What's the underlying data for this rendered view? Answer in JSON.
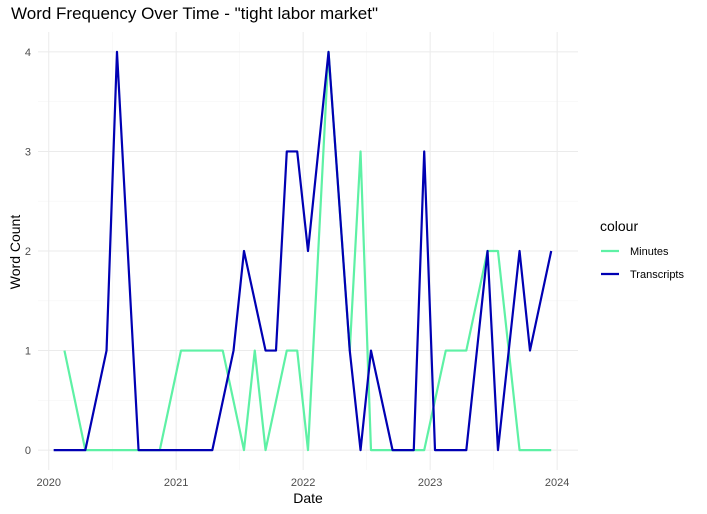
{
  "chart_data": {
    "type": "line",
    "title": "Word Frequency Over Time - \"tight labor market\"",
    "xlabel": "Date",
    "ylabel": "Word Count",
    "x_ticks": [
      "2020",
      "2021",
      "2022",
      "2023",
      "2024"
    ],
    "y_ticks": [
      "0",
      "1",
      "2",
      "3",
      "4"
    ],
    "xlim": [
      "2019-12-01",
      "2024-03-01"
    ],
    "ylim": [
      -0.2,
      4.2
    ],
    "grid": true,
    "legend_title": "colour",
    "legend_position": "right",
    "series": [
      {
        "name": "Minutes",
        "color": "#5EF1A5",
        "x": [
          "2020-02-15",
          "2020-04-15",
          "2020-06-15",
          "2020-07-15",
          "2020-09-15",
          "2020-11-15",
          "2021-01-15",
          "2021-03-15",
          "2021-04-15",
          "2021-05-15",
          "2021-07-15",
          "2021-08-15",
          "2021-09-15",
          "2021-11-15",
          "2021-12-15",
          "2022-01-15",
          "2022-03-15",
          "2022-05-15",
          "2022-06-15",
          "2022-07-15",
          "2022-09-15",
          "2022-11-15",
          "2022-12-15",
          "2023-02-15",
          "2023-03-15",
          "2023-04-15",
          "2023-06-15",
          "2023-07-15",
          "2023-09-15",
          "2023-11-15",
          "2023-12-15"
        ],
        "y": [
          1,
          0,
          0,
          0,
          0,
          0,
          1,
          1,
          1,
          1,
          0,
          1,
          0,
          1,
          1,
          0,
          4,
          1,
          3,
          0,
          0,
          0,
          0,
          1,
          1,
          1,
          2,
          2,
          0,
          0,
          0
        ]
      },
      {
        "name": "Transcripts",
        "color": "#0000B3",
        "x": [
          "2020-01-15",
          "2020-03-15",
          "2020-04-15",
          "2020-06-15",
          "2020-07-15",
          "2020-09-15",
          "2020-10-15",
          "2020-12-15",
          "2021-01-15",
          "2021-03-15",
          "2021-04-15",
          "2021-06-15",
          "2021-07-15",
          "2021-09-15",
          "2021-10-15",
          "2021-11-15",
          "2021-12-15",
          "2022-01-15",
          "2022-03-15",
          "2022-05-15",
          "2022-06-15",
          "2022-07-15",
          "2022-09-15",
          "2022-10-15",
          "2022-11-15",
          "2022-12-15",
          "2023-01-15",
          "2023-03-15",
          "2023-04-15",
          "2023-06-15",
          "2023-07-15",
          "2023-09-15",
          "2023-10-15",
          "2023-12-15"
        ],
        "y": [
          0,
          0,
          0,
          1,
          4,
          0,
          0,
          0,
          0,
          0,
          0,
          1,
          2,
          1,
          1,
          3,
          3,
          2,
          4,
          1,
          0,
          1,
          0,
          0,
          0,
          3,
          0,
          0,
          0,
          2,
          0,
          2,
          1,
          2
        ]
      }
    ]
  }
}
